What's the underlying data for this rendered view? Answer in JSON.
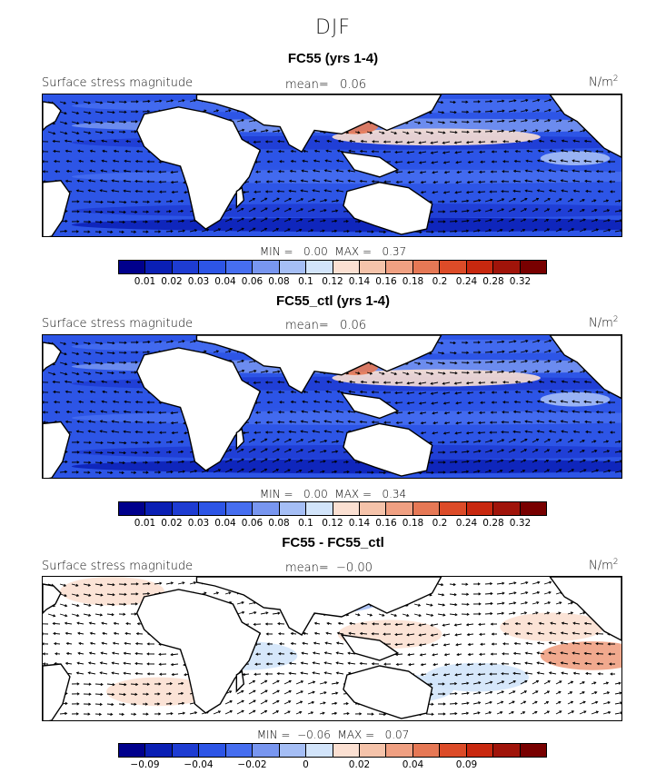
{
  "figure_title": "DJF",
  "panels": [
    {
      "title": "FC55 (yrs 1-4)",
      "field_label": "Surface stress magnitude",
      "mean_text": "mean=   0.06",
      "units_text": "N/m",
      "units_exp": "2",
      "minmax_text": "MIN =   0.00  MAX =   0.37",
      "colorbar": {
        "colors": [
          "#00008c",
          "#0a1fb4",
          "#1e3cd2",
          "#2d55e6",
          "#466ef0",
          "#7896f0",
          "#a5bef5",
          "#d2e4fa",
          "#fbe0d2",
          "#f5c3aa",
          "#f0a082",
          "#e67855",
          "#dc4b28",
          "#c8280f",
          "#a0140a",
          "#780000"
        ],
        "ticks": [
          "0.01",
          "0.02",
          "0.03",
          "0.04",
          "0.06",
          "0.08",
          "0.1",
          "0.12",
          "0.14",
          "0.16",
          "0.18",
          "0.2",
          "0.24",
          "0.28",
          "0.32"
        ]
      },
      "map_style": "magnitude"
    },
    {
      "title": "FC55_ctl (yrs 1-4)",
      "field_label": "Surface stress magnitude",
      "mean_text": "mean=   0.06",
      "units_text": "N/m",
      "units_exp": "2",
      "minmax_text": "MIN =   0.00  MAX =   0.34",
      "colorbar": {
        "colors": [
          "#00008c",
          "#0a1fb4",
          "#1e3cd2",
          "#2d55e6",
          "#466ef0",
          "#7896f0",
          "#a5bef5",
          "#d2e4fa",
          "#fbe0d2",
          "#f5c3aa",
          "#f0a082",
          "#e67855",
          "#dc4b28",
          "#c8280f",
          "#a0140a",
          "#780000"
        ],
        "ticks": [
          "0.01",
          "0.02",
          "0.03",
          "0.04",
          "0.06",
          "0.08",
          "0.1",
          "0.12",
          "0.14",
          "0.16",
          "0.18",
          "0.2",
          "0.24",
          "0.28",
          "0.32"
        ]
      },
      "map_style": "magnitude"
    },
    {
      "title": "FC55 - FC55_ctl",
      "field_label": "Surface stress magnitude",
      "mean_text": "mean=  −0.00",
      "units_text": "N/m",
      "units_exp": "2",
      "minmax_text": "MIN =  −0.06  MAX =   0.07",
      "colorbar": {
        "colors": [
          "#00008c",
          "#0a1fb4",
          "#1e3cd2",
          "#2d55e6",
          "#466ef0",
          "#7896f0",
          "#a5bef5",
          "#d2e4fa",
          "#fbe0d2",
          "#f5c3aa",
          "#f0a082",
          "#e67855",
          "#dc4b28",
          "#c8280f",
          "#a0140a",
          "#780000"
        ],
        "ticks": [
          "−0.09",
          "",
          "−0.04",
          "",
          "−0.02",
          "",
          "0",
          "",
          "0.02",
          "",
          "0.04",
          "",
          "0.09",
          "",
          ""
        ]
      },
      "map_style": "difference"
    }
  ]
}
